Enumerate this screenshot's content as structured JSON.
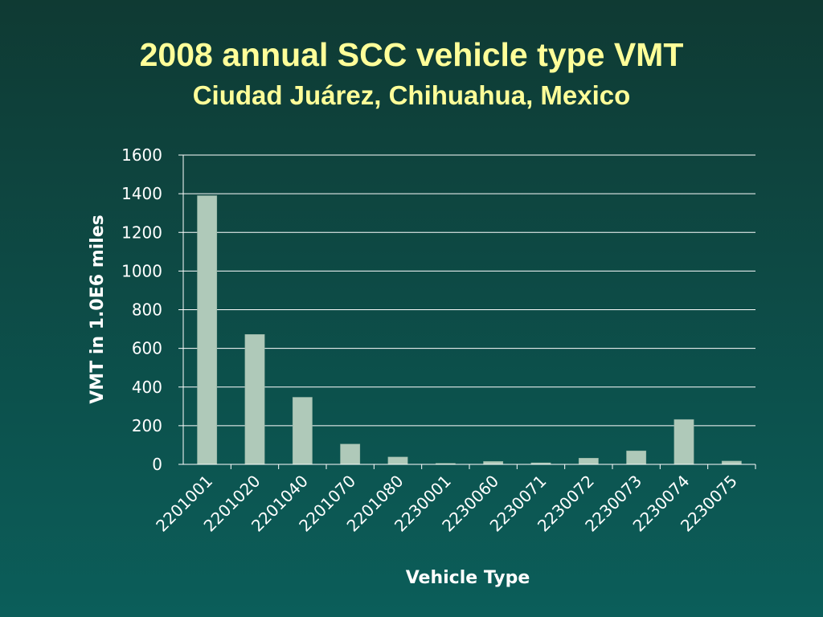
{
  "slide": {
    "title": "2008 annual SCC vehicle type VMT",
    "subtitle": "Ciudad Juárez, Chihuahua, Mexico"
  },
  "colors": {
    "background_top": "#0f3a33",
    "background_bottom": "#0b5e5a",
    "title": "#ffff99",
    "bar_fill": "#afc9b9",
    "gridline": "#ffffff",
    "text": "#ffffff"
  },
  "chart_data": {
    "type": "bar",
    "title": "",
    "xlabel": "Vehicle Type",
    "ylabel": "VMT in 1.0E6 miles",
    "categories": [
      "2201001",
      "2201020",
      "2201040",
      "2201070",
      "2201080",
      "2230001",
      "2230060",
      "2230071",
      "2230072",
      "2230073",
      "2230074",
      "2230075"
    ],
    "values": [
      1390,
      672,
      347,
      105,
      38,
      5,
      15,
      8,
      32,
      70,
      232,
      17
    ],
    "ylim": [
      0,
      1600
    ],
    "yticks": [
      0,
      200,
      400,
      600,
      800,
      1000,
      1200,
      1400,
      1600
    ],
    "grid": true,
    "legend": "none"
  }
}
